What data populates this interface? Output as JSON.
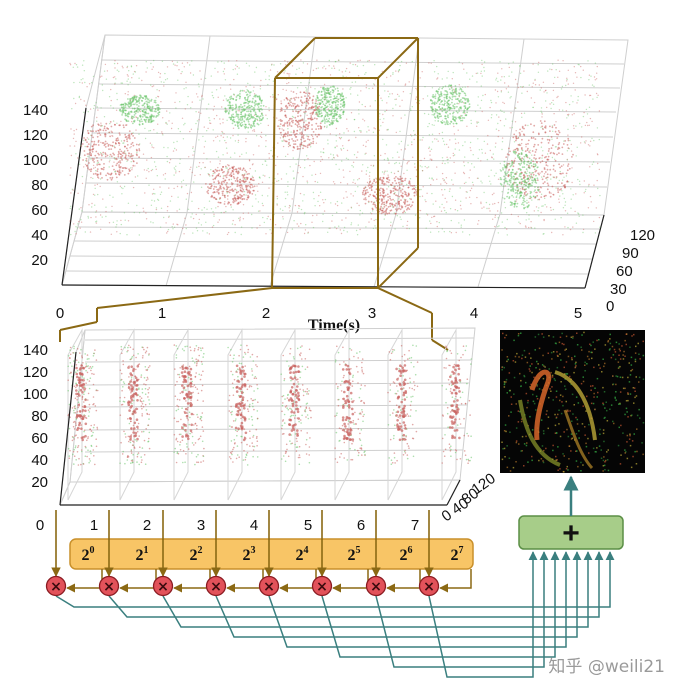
{
  "colors": {
    "frame": "#8b6914",
    "teal": "#3a7f7f",
    "multiplier_fill": "#e2525a",
    "multiplier_stroke": "#8a1c22",
    "weight_bar_fill": "#f8c566",
    "weight_bar_stroke": "#c9902b",
    "adder_fill": "#a7cd89",
    "adder_stroke": "#5b8f46",
    "event_red": "#c9625f",
    "event_green": "#6cc56b"
  },
  "top_plot": {
    "z_ticks": [
      "140",
      "120",
      "100",
      "80",
      "60",
      "40",
      "20"
    ],
    "x_ticks": [
      "0",
      "1",
      "2",
      "3",
      "4",
      "5"
    ],
    "y_ticks": [
      "120",
      "90",
      "60",
      "30",
      "0"
    ],
    "x_label": "Time(s)"
  },
  "bottom_plot": {
    "z_ticks": [
      "140",
      "120",
      "100",
      "80",
      "60",
      "40",
      "20"
    ],
    "x_ticks": [
      "0",
      "1",
      "2",
      "3",
      "4",
      "5",
      "6",
      "7"
    ],
    "y_ticks": [
      "120",
      "80",
      "40",
      "0"
    ]
  },
  "weights": [
    {
      "base": "2",
      "exp": "0"
    },
    {
      "base": "2",
      "exp": "1"
    },
    {
      "base": "2",
      "exp": "2"
    },
    {
      "base": "2",
      "exp": "3"
    },
    {
      "base": "2",
      "exp": "4"
    },
    {
      "base": "2",
      "exp": "5"
    },
    {
      "base": "2",
      "exp": "6"
    },
    {
      "base": "2",
      "exp": "7"
    }
  ],
  "multiplier_symbol": "×",
  "adder_symbol": "+",
  "watermark": "知乎 @weili21"
}
